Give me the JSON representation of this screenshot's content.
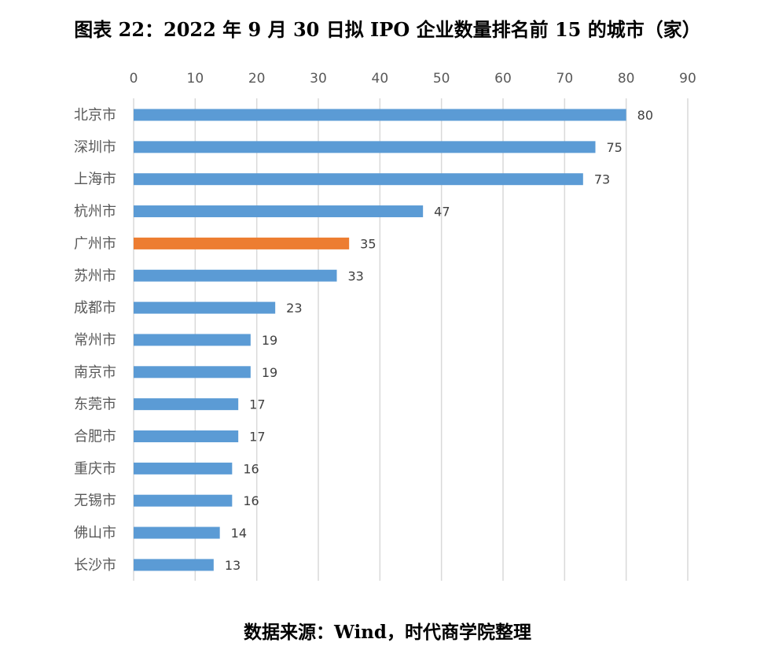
{
  "chart_data": {
    "type": "bar",
    "orientation": "horizontal",
    "title": "图表 22：2022 年 9 月 30 日拟 IPO 企业数量排名前 15 的城市（家）",
    "source": "数据来源：Wind，时代商学院整理",
    "categories": [
      "北京市",
      "深圳市",
      "上海市",
      "杭州市",
      "广州市",
      "苏州市",
      "成都市",
      "常州市",
      "南京市",
      "东莞市",
      "合肥市",
      "重庆市",
      "无锡市",
      "佛山市",
      "长沙市"
    ],
    "values": [
      80,
      75,
      73,
      47,
      35,
      33,
      23,
      19,
      19,
      17,
      17,
      16,
      16,
      14,
      13
    ],
    "highlight_category": "广州市",
    "xlim": [
      0,
      90
    ],
    "xticks": [
      0,
      10,
      20,
      30,
      40,
      50,
      60,
      70,
      80,
      90
    ],
    "x_axis_position": "top",
    "grid": true,
    "legend": "none",
    "colors": {
      "bar": "#5B9BD5",
      "highlight": "#ED7D31",
      "grid": "#D9D9D9"
    }
  }
}
